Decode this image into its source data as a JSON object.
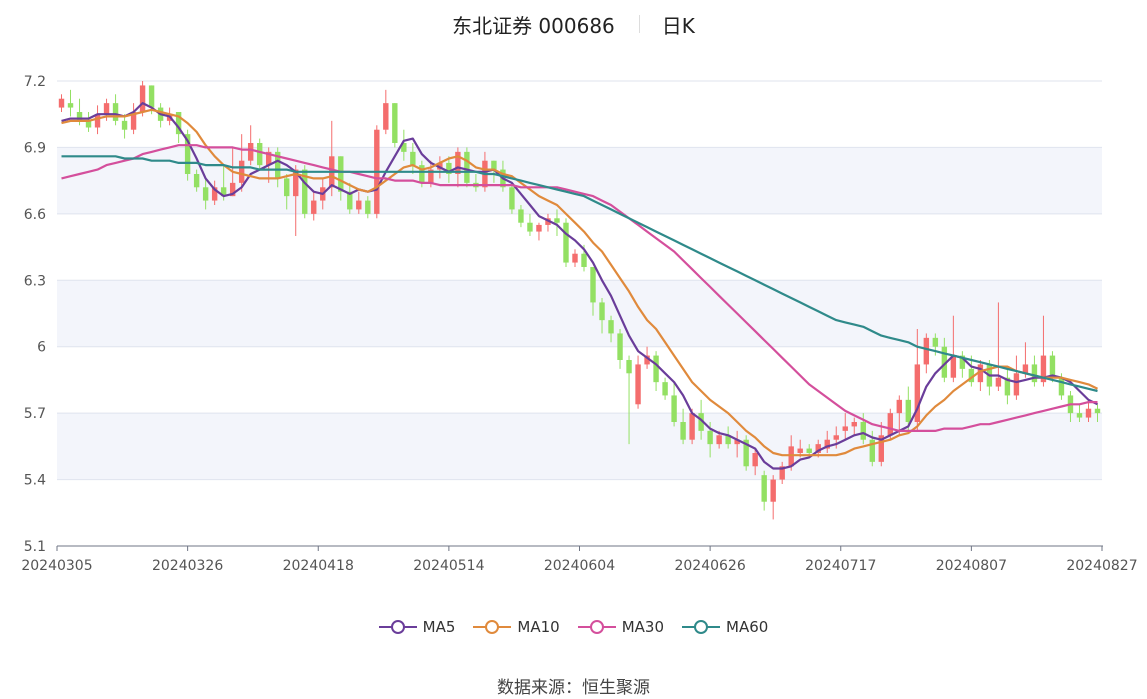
{
  "header": {
    "title": "东北证券 000686",
    "period": "日K"
  },
  "source": {
    "label": "数据来源：",
    "value": "恒生聚源"
  },
  "colors": {
    "up": "#f46d6d",
    "down": "#93e063",
    "MA5": "#6a3d9a",
    "MA10": "#e08a3c",
    "MA30": "#d44f9c",
    "MA60": "#2f8a8a",
    "band": "#f3f5fb",
    "grid": "#dfe3ee"
  },
  "chart_data": {
    "type": "candlestick",
    "title": "东北证券 000686",
    "ylim": [
      5.1,
      7.2
    ],
    "yticks": [
      "7.2",
      "6.9",
      "6.6",
      "6.3",
      "6",
      "5.7",
      "5.4",
      "5.1"
    ],
    "xticks": [
      "20240305",
      "20240326",
      "20240418",
      "20240514",
      "20240604",
      "20240626",
      "20240717",
      "20240807",
      "20240827"
    ],
    "legend": [
      {
        "name": "MA5",
        "color": "#6a3d9a"
      },
      {
        "name": "MA10",
        "color": "#e08a3c"
      },
      {
        "name": "MA30",
        "color": "#d44f9c"
      },
      {
        "name": "MA60",
        "color": "#2f8a8a"
      }
    ],
    "candles": [
      [
        7.08,
        7.12,
        7.14,
        7.06
      ],
      [
        7.1,
        7.08,
        7.16,
        7.04
      ],
      [
        7.06,
        7.02,
        7.12,
        7.0
      ],
      [
        7.02,
        6.99,
        7.06,
        6.97
      ],
      [
        6.99,
        7.05,
        7.09,
        6.96
      ],
      [
        7.05,
        7.1,
        7.12,
        7.02
      ],
      [
        7.1,
        7.02,
        7.14,
        7.0
      ],
      [
        7.02,
        6.98,
        7.05,
        6.94
      ],
      [
        6.98,
        7.06,
        7.1,
        6.96
      ],
      [
        7.06,
        7.18,
        7.2,
        7.04
      ],
      [
        7.18,
        7.08,
        7.18,
        7.05
      ],
      [
        7.08,
        7.02,
        7.1,
        6.99
      ],
      [
        7.02,
        7.05,
        7.08,
        7.0
      ],
      [
        7.06,
        6.96,
        7.06,
        6.92
      ],
      [
        6.96,
        6.78,
        6.98,
        6.75
      ],
      [
        6.78,
        6.72,
        6.8,
        6.7
      ],
      [
        6.72,
        6.66,
        6.76,
        6.62
      ],
      [
        6.66,
        6.72,
        6.75,
        6.64
      ],
      [
        6.72,
        6.68,
        6.82,
        6.66
      ],
      [
        6.68,
        6.74,
        6.9,
        6.68
      ],
      [
        6.74,
        6.84,
        6.96,
        6.7
      ],
      [
        6.84,
        6.92,
        7.0,
        6.82
      ],
      [
        6.92,
        6.82,
        6.94,
        6.8
      ],
      [
        6.82,
        6.88,
        6.9,
        6.74
      ],
      [
        6.88,
        6.76,
        6.9,
        6.72
      ],
      [
        6.76,
        6.68,
        6.78,
        6.62
      ],
      [
        6.68,
        6.8,
        6.82,
        6.5
      ],
      [
        6.8,
        6.6,
        6.82,
        6.58
      ],
      [
        6.6,
        6.66,
        6.7,
        6.57
      ],
      [
        6.66,
        6.72,
        6.76,
        6.62
      ],
      [
        6.72,
        6.86,
        7.02,
        6.68
      ],
      [
        6.86,
        6.7,
        6.86,
        6.66
      ],
      [
        6.7,
        6.62,
        6.74,
        6.6
      ],
      [
        6.62,
        6.66,
        6.7,
        6.6
      ],
      [
        6.66,
        6.6,
        6.68,
        6.58
      ],
      [
        6.6,
        6.98,
        7.0,
        6.58
      ],
      [
        6.98,
        7.1,
        7.16,
        6.96
      ],
      [
        7.1,
        6.92,
        7.1,
        6.9
      ],
      [
        6.92,
        6.88,
        6.98,
        6.84
      ],
      [
        6.88,
        6.82,
        6.92,
        6.78
      ],
      [
        6.82,
        6.74,
        6.84,
        6.72
      ],
      [
        6.74,
        6.8,
        6.84,
        6.72
      ],
      [
        6.8,
        6.83,
        6.86,
        6.76
      ],
      [
        6.83,
        6.78,
        6.86,
        6.74
      ],
      [
        6.78,
        6.88,
        6.9,
        6.72
      ],
      [
        6.88,
        6.74,
        6.9,
        6.72
      ],
      [
        6.74,
        6.72,
        6.78,
        6.7
      ],
      [
        6.72,
        6.84,
        6.88,
        6.7
      ],
      [
        6.84,
        6.8,
        6.84,
        6.74
      ],
      [
        6.8,
        6.72,
        6.84,
        6.7
      ],
      [
        6.72,
        6.62,
        6.74,
        6.6
      ],
      [
        6.62,
        6.56,
        6.64,
        6.54
      ],
      [
        6.56,
        6.52,
        6.6,
        6.5
      ],
      [
        6.52,
        6.55,
        6.56,
        6.48
      ],
      [
        6.55,
        6.58,
        6.6,
        6.52
      ],
      [
        6.58,
        6.56,
        6.62,
        6.5
      ],
      [
        6.56,
        6.38,
        6.58,
        6.36
      ],
      [
        6.38,
        6.42,
        6.44,
        6.36
      ],
      [
        6.42,
        6.36,
        6.46,
        6.34
      ],
      [
        6.36,
        6.2,
        6.36,
        6.14
      ],
      [
        6.2,
        6.12,
        6.22,
        6.06
      ],
      [
        6.12,
        6.06,
        6.14,
        6.02
      ],
      [
        6.06,
        5.94,
        6.08,
        5.9
      ],
      [
        5.94,
        5.88,
        5.96,
        5.56
      ],
      [
        5.74,
        5.92,
        5.96,
        5.72
      ],
      [
        5.92,
        5.96,
        6.0,
        5.9
      ],
      [
        5.96,
        5.84,
        5.98,
        5.8
      ],
      [
        5.84,
        5.78,
        5.86,
        5.76
      ],
      [
        5.78,
        5.66,
        5.84,
        5.64
      ],
      [
        5.66,
        5.58,
        5.72,
        5.56
      ],
      [
        5.58,
        5.7,
        5.72,
        5.56
      ],
      [
        5.7,
        5.62,
        5.76,
        5.58
      ],
      [
        5.62,
        5.56,
        5.66,
        5.5
      ],
      [
        5.56,
        5.6,
        5.62,
        5.54
      ],
      [
        5.6,
        5.56,
        5.64,
        5.54
      ],
      [
        5.56,
        5.58,
        5.62,
        5.5
      ],
      [
        5.58,
        5.46,
        5.6,
        5.44
      ],
      [
        5.46,
        5.52,
        5.54,
        5.42
      ],
      [
        5.42,
        5.3,
        5.44,
        5.26
      ],
      [
        5.3,
        5.4,
        5.42,
        5.22
      ],
      [
        5.4,
        5.46,
        5.48,
        5.38
      ],
      [
        5.46,
        5.55,
        5.6,
        5.44
      ],
      [
        5.52,
        5.54,
        5.58,
        5.5
      ],
      [
        5.54,
        5.52,
        5.56,
        5.5
      ],
      [
        5.52,
        5.56,
        5.58,
        5.5
      ],
      [
        5.54,
        5.58,
        5.62,
        5.52
      ],
      [
        5.58,
        5.6,
        5.64,
        5.54
      ],
      [
        5.62,
        5.64,
        5.7,
        5.58
      ],
      [
        5.64,
        5.66,
        5.68,
        5.6
      ],
      [
        5.66,
        5.58,
        5.7,
        5.56
      ],
      [
        5.58,
        5.48,
        5.62,
        5.46
      ],
      [
        5.48,
        5.6,
        5.66,
        5.46
      ],
      [
        5.6,
        5.7,
        5.72,
        5.58
      ],
      [
        5.7,
        5.76,
        5.78,
        5.6
      ],
      [
        5.76,
        5.66,
        5.82,
        5.62
      ],
      [
        5.66,
        5.92,
        6.08,
        5.62
      ],
      [
        5.92,
        6.04,
        6.06,
        5.88
      ],
      [
        6.04,
        6.0,
        6.06,
        5.96
      ],
      [
        6.0,
        5.86,
        6.04,
        5.84
      ],
      [
        5.86,
        5.96,
        6.14,
        5.84
      ],
      [
        5.96,
        5.9,
        5.98,
        5.86
      ],
      [
        5.9,
        5.84,
        5.96,
        5.82
      ],
      [
        5.84,
        5.92,
        5.94,
        5.8
      ],
      [
        5.92,
        5.82,
        5.94,
        5.78
      ],
      [
        5.82,
        5.86,
        6.2,
        5.8
      ],
      [
        5.86,
        5.78,
        5.9,
        5.74
      ],
      [
        5.78,
        5.88,
        5.96,
        5.76
      ],
      [
        5.88,
        5.92,
        6.02,
        5.86
      ],
      [
        5.92,
        5.84,
        5.96,
        5.82
      ],
      [
        5.84,
        5.96,
        6.14,
        5.82
      ],
      [
        5.96,
        5.86,
        5.98,
        5.84
      ],
      [
        5.86,
        5.78,
        5.88,
        5.76
      ],
      [
        5.78,
        5.7,
        5.8,
        5.66
      ],
      [
        5.7,
        5.68,
        5.74,
        5.66
      ],
      [
        5.68,
        5.72,
        5.76,
        5.66
      ],
      [
        5.72,
        5.7,
        5.74,
        5.66
      ]
    ],
    "series": [
      {
        "name": "MA5",
        "values": [
          7.02,
          7.03,
          7.03,
          7.03,
          7.05,
          7.05,
          7.05,
          7.04,
          7.06,
          7.1,
          7.08,
          7.05,
          7.04,
          6.99,
          6.93,
          6.85,
          6.76,
          6.71,
          6.68,
          6.69,
          6.72,
          6.78,
          6.8,
          6.82,
          6.84,
          6.82,
          6.79,
          6.74,
          6.7,
          6.69,
          6.73,
          6.71,
          6.69,
          6.71,
          6.7,
          6.71,
          6.79,
          6.86,
          6.93,
          6.94,
          6.87,
          6.83,
          6.81,
          6.79,
          6.81,
          6.8,
          6.79,
          6.79,
          6.8,
          6.76,
          6.74,
          6.69,
          6.64,
          6.59,
          6.57,
          6.55,
          6.51,
          6.48,
          6.44,
          6.38,
          6.3,
          6.23,
          6.14,
          6.05,
          5.98,
          5.95,
          5.92,
          5.88,
          5.84,
          5.78,
          5.7,
          5.67,
          5.63,
          5.61,
          5.6,
          5.58,
          5.56,
          5.54,
          5.48,
          5.45,
          5.45,
          5.46,
          5.49,
          5.5,
          5.53,
          5.55,
          5.56,
          5.58,
          5.6,
          5.61,
          5.59,
          5.58,
          5.6,
          5.62,
          5.64,
          5.72,
          5.82,
          5.88,
          5.92,
          5.96,
          5.95,
          5.91,
          5.9,
          5.87,
          5.87,
          5.85,
          5.84,
          5.85,
          5.86,
          5.86,
          5.87,
          5.86,
          5.84,
          5.8,
          5.76,
          5.74
        ]
      },
      {
        "name": "MA10",
        "values": [
          7.01,
          7.02,
          7.02,
          7.02,
          7.03,
          7.04,
          7.04,
          7.04,
          7.05,
          7.06,
          7.07,
          7.06,
          7.05,
          7.04,
          7.01,
          6.97,
          6.91,
          6.86,
          6.82,
          6.79,
          6.78,
          6.77,
          6.76,
          6.76,
          6.76,
          6.77,
          6.78,
          6.77,
          6.76,
          6.76,
          6.77,
          6.75,
          6.73,
          6.71,
          6.7,
          6.72,
          6.75,
          6.78,
          6.81,
          6.82,
          6.8,
          6.81,
          6.83,
          6.85,
          6.86,
          6.84,
          6.81,
          6.8,
          6.8,
          6.78,
          6.77,
          6.74,
          6.71,
          6.68,
          6.66,
          6.64,
          6.6,
          6.56,
          6.52,
          6.47,
          6.43,
          6.37,
          6.31,
          6.25,
          6.18,
          6.12,
          6.08,
          6.02,
          5.96,
          5.9,
          5.84,
          5.8,
          5.76,
          5.73,
          5.7,
          5.66,
          5.62,
          5.59,
          5.55,
          5.52,
          5.51,
          5.51,
          5.51,
          5.51,
          5.51,
          5.51,
          5.51,
          5.52,
          5.54,
          5.55,
          5.56,
          5.57,
          5.58,
          5.6,
          5.61,
          5.64,
          5.69,
          5.73,
          5.76,
          5.8,
          5.83,
          5.86,
          5.89,
          5.9,
          5.91,
          5.91,
          5.89,
          5.88,
          5.87,
          5.86,
          5.86,
          5.86,
          5.85,
          5.84,
          5.83,
          5.81
        ]
      },
      {
        "name": "MA30",
        "values": [
          6.76,
          6.77,
          6.78,
          6.79,
          6.8,
          6.82,
          6.83,
          6.84,
          6.85,
          6.87,
          6.88,
          6.89,
          6.9,
          6.91,
          6.91,
          6.91,
          6.9,
          6.9,
          6.9,
          6.9,
          6.89,
          6.89,
          6.88,
          6.87,
          6.86,
          6.85,
          6.84,
          6.83,
          6.82,
          6.81,
          6.8,
          6.79,
          6.79,
          6.78,
          6.77,
          6.76,
          6.76,
          6.75,
          6.75,
          6.75,
          6.74,
          6.74,
          6.73,
          6.73,
          6.73,
          6.73,
          6.73,
          6.73,
          6.73,
          6.73,
          6.73,
          6.72,
          6.72,
          6.72,
          6.72,
          6.72,
          6.71,
          6.7,
          6.69,
          6.68,
          6.66,
          6.64,
          6.61,
          6.58,
          6.55,
          6.52,
          6.49,
          6.46,
          6.43,
          6.39,
          6.35,
          6.31,
          6.27,
          6.23,
          6.19,
          6.15,
          6.11,
          6.07,
          6.03,
          5.99,
          5.95,
          5.91,
          5.87,
          5.83,
          5.8,
          5.77,
          5.74,
          5.71,
          5.69,
          5.67,
          5.65,
          5.64,
          5.63,
          5.62,
          5.62,
          5.62,
          5.62,
          5.62,
          5.63,
          5.63,
          5.63,
          5.64,
          5.65,
          5.65,
          5.66,
          5.67,
          5.68,
          5.69,
          5.7,
          5.71,
          5.72,
          5.73,
          5.74,
          5.74,
          5.75,
          5.75
        ]
      },
      {
        "name": "MA60",
        "values": [
          6.86,
          6.86,
          6.86,
          6.86,
          6.86,
          6.86,
          6.86,
          6.85,
          6.85,
          6.85,
          6.84,
          6.84,
          6.84,
          6.83,
          6.83,
          6.83,
          6.82,
          6.82,
          6.82,
          6.81,
          6.81,
          6.81,
          6.8,
          6.8,
          6.8,
          6.8,
          6.79,
          6.79,
          6.79,
          6.79,
          6.79,
          6.79,
          6.79,
          6.79,
          6.79,
          6.79,
          6.79,
          6.79,
          6.79,
          6.79,
          6.79,
          6.79,
          6.79,
          6.79,
          6.79,
          6.79,
          6.79,
          6.78,
          6.78,
          6.77,
          6.76,
          6.75,
          6.74,
          6.73,
          6.72,
          6.71,
          6.7,
          6.69,
          6.68,
          6.66,
          6.64,
          6.62,
          6.6,
          6.58,
          6.56,
          6.54,
          6.52,
          6.5,
          6.48,
          6.46,
          6.44,
          6.42,
          6.4,
          6.38,
          6.36,
          6.34,
          6.32,
          6.3,
          6.28,
          6.26,
          6.24,
          6.22,
          6.2,
          6.18,
          6.16,
          6.14,
          6.12,
          6.11,
          6.1,
          6.09,
          6.07,
          6.05,
          6.04,
          6.03,
          6.02,
          6.0,
          5.99,
          5.98,
          5.97,
          5.96,
          5.95,
          5.94,
          5.93,
          5.92,
          5.91,
          5.9,
          5.89,
          5.88,
          5.87,
          5.86,
          5.85,
          5.84,
          5.83,
          5.82,
          5.81,
          5.8
        ]
      }
    ]
  }
}
